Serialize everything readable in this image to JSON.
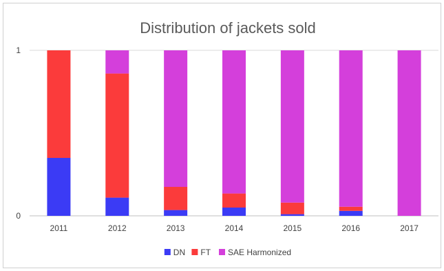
{
  "colors": {
    "DN": "#3b3bf5",
    "FT": "#fb3b3b",
    "SAE Harmonized": "#d43fdb",
    "gridline": "#d9d9d9",
    "axis": "#bfbfbf"
  },
  "chart_data": {
    "type": "bar",
    "stacked": true,
    "title": "Distribution of jackets sold",
    "xlabel": "",
    "ylabel": "",
    "categories": [
      "2011",
      "2012",
      "2013",
      "2014",
      "2015",
      "2016",
      "2017"
    ],
    "ylim": [
      0,
      1
    ],
    "yticks": [
      "0",
      "1"
    ],
    "grid": true,
    "legend_position": "bottom",
    "series": [
      {
        "name": "DN",
        "values": [
          0.35,
          0.11,
          0.035,
          0.05,
          0.01,
          0.03,
          0.0
        ]
      },
      {
        "name": "FT",
        "values": [
          0.65,
          0.75,
          0.14,
          0.085,
          0.07,
          0.025,
          0.0
        ]
      },
      {
        "name": "SAE Harmonized",
        "values": [
          0.0,
          0.14,
          0.825,
          0.865,
          0.92,
          0.945,
          1.0
        ]
      }
    ]
  }
}
